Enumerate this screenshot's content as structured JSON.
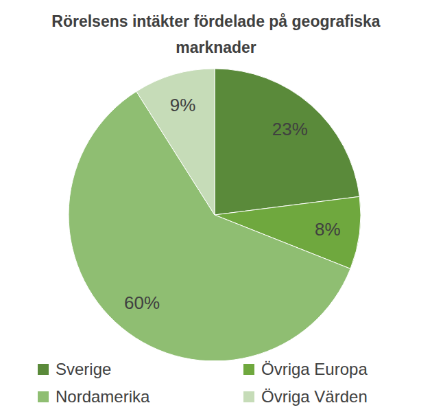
{
  "chart_data": {
    "type": "pie",
    "title": "Rörelsens intäkter fördelade på geografiska marknader",
    "categories": [
      "Sverige",
      "Övriga Europa",
      "Nordamerika",
      "Övriga Värden"
    ],
    "values": [
      23,
      8,
      60,
      9
    ],
    "value_labels": [
      "23%",
      "8%",
      "60%",
      "9%"
    ],
    "colors": [
      "#5a8a3a",
      "#6fa83e",
      "#8fbe72",
      "#c6dcb8"
    ],
    "data_labels": true,
    "legend": "bottom"
  }
}
